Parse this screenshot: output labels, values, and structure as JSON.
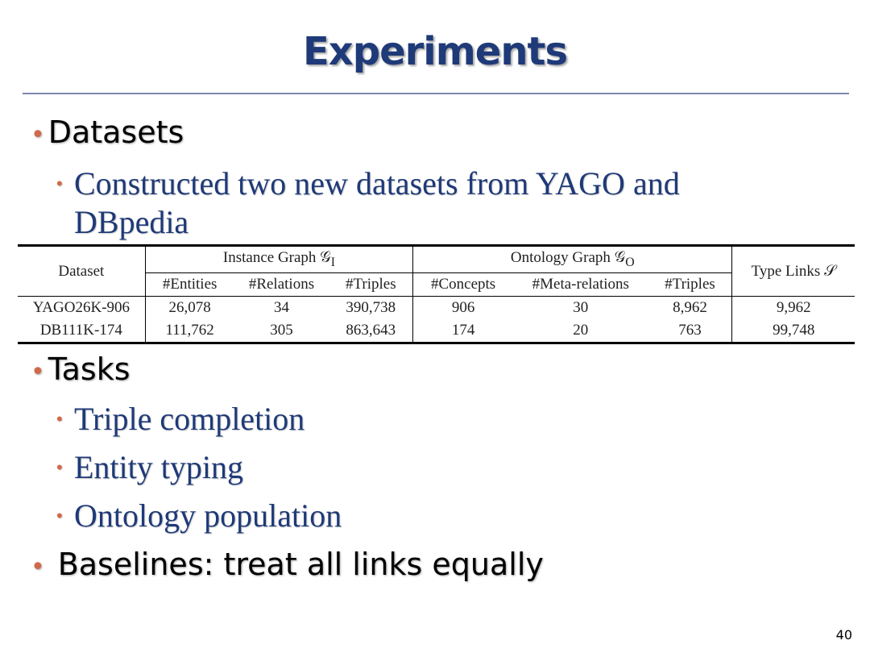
{
  "slide": {
    "title": "Experiments",
    "page_number": "40"
  },
  "sections": {
    "datasets": {
      "bullet": "•",
      "label": "Datasets",
      "sub_bullet": "•",
      "line1": "Constructed two new datasets from YAGO and",
      "line2": "DBpedia"
    },
    "tasks": {
      "bullet": "•",
      "label": "Tasks",
      "items": [
        {
          "bullet": "•",
          "label": "Triple completion"
        },
        {
          "bullet": "•",
          "label": "Entity typing"
        },
        {
          "bullet": "•",
          "label": "Ontology population"
        }
      ]
    },
    "baselines": {
      "bullet": "•",
      "label": "Baselines: treat all links equally"
    }
  },
  "table": {
    "header_dataset": "Dataset",
    "header_instance_graph": "Instance Graph 𝒢",
    "header_instance_sub": "I",
    "header_ontology_graph": "Ontology Graph 𝒢",
    "header_ontology_sub": "O",
    "header_type_links": "Type Links 𝒮",
    "columns": [
      "#Entities",
      "#Relations",
      "#Triples",
      "#Concepts",
      "#Meta-relations",
      "#Triples"
    ],
    "rows": [
      {
        "dataset": "YAGO26K-906",
        "entities": "26,078",
        "relations": "34",
        "triples_i": "390,738",
        "concepts": "906",
        "meta_relations": "30",
        "triples_o": "8,962",
        "type_links": "9,962"
      },
      {
        "dataset": "DB111K-174",
        "entities": "111,762",
        "relations": "305",
        "triples_i": "863,643",
        "concepts": "174",
        "meta_relations": "20",
        "triples_o": "763",
        "type_links": "99,748"
      }
    ]
  }
}
